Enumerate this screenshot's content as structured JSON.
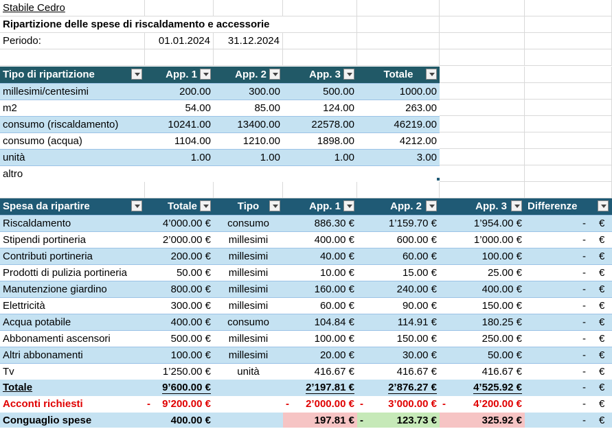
{
  "header": {
    "building": "Stabile Cedro",
    "title": "Ripartizione delle spese di riscaldamento e accessorie",
    "period_label": "Periodo:",
    "period_start": "01.01.2024",
    "period_end": "31.12.2024"
  },
  "table1": {
    "columns": [
      "Tipo di ripartizione",
      "App. 1",
      "App. 2",
      "App. 3",
      "Totale"
    ],
    "rows": [
      [
        "millesimi/centesimi",
        "200.00",
        "300.00",
        "500.00",
        "1000.00"
      ],
      [
        "m2",
        "54.00",
        "85.00",
        "124.00",
        "263.00"
      ],
      [
        "consumo (riscaldamento)",
        "10241.00",
        "13400.00",
        "22578.00",
        "46219.00"
      ],
      [
        "consumo (acqua)",
        "1104.00",
        "1210.00",
        "1898.00",
        "4212.00"
      ],
      [
        "unità",
        "1.00",
        "1.00",
        "1.00",
        "3.00"
      ],
      [
        "altro",
        "",
        "",
        "",
        ""
      ]
    ]
  },
  "table2": {
    "columns": [
      "Spesa da ripartire",
      "Totale",
      "Tipo",
      "App. 1",
      "App. 2",
      "App. 3",
      "Differenze"
    ],
    "rows": [
      [
        "Riscaldamento",
        "4’000.00 €",
        "consumo",
        "886.30 €",
        "1’159.70 €",
        "1’954.00 €",
        "-",
        "€"
      ],
      [
        "Stipendi portineria",
        "2’000.00 €",
        "millesimi",
        "400.00 €",
        "600.00 €",
        "1’000.00 €",
        "-",
        "€"
      ],
      [
        "Contributi portineria",
        "200.00 €",
        "millesimi",
        "40.00 €",
        "60.00 €",
        "100.00 €",
        "-",
        "€"
      ],
      [
        "Prodotti di pulizia portineria",
        "50.00 €",
        "millesimi",
        "10.00 €",
        "15.00 €",
        "25.00 €",
        "-",
        "€"
      ],
      [
        "Manutenzione giardino",
        "800.00 €",
        "millesimi",
        "160.00 €",
        "240.00 €",
        "400.00 €",
        "-",
        "€"
      ],
      [
        "Elettricità",
        "300.00 €",
        "millesimi",
        "60.00 €",
        "90.00 €",
        "150.00 €",
        "-",
        "€"
      ],
      [
        "Acqua potabile",
        "400.00 €",
        "consumo",
        "104.84 €",
        "114.91 €",
        "180.25 €",
        "-",
        "€"
      ],
      [
        "Abbonamenti ascensori",
        "500.00 €",
        "millesimi",
        "100.00 €",
        "150.00 €",
        "250.00 €",
        "-",
        "€"
      ],
      [
        "Altri abbonamenti",
        "100.00 €",
        "millesimi",
        "20.00 €",
        "30.00 €",
        "50.00 €",
        "-",
        "€"
      ],
      [
        "Tv",
        "1’250.00 €",
        "unità",
        "416.67 €",
        "416.67 €",
        "416.67 €",
        "-",
        "€"
      ]
    ],
    "totale": {
      "label": "Totale",
      "total": "9’600.00 €",
      "app1": "2’197.81 €",
      "app2": "2’876.27 €",
      "app3": "4’525.92 €",
      "diff_dash": "-",
      "diff_cur": "€"
    },
    "acconti": {
      "label": "Acconti richiesti",
      "total_sign": "-",
      "total": "9’200.00 €",
      "app1_sign": "-",
      "app1": "2’000.00 €",
      "app2_sign": "-",
      "app2": "3’000.00 €",
      "app3_sign": "-",
      "app3": "4’200.00 €",
      "diff_dash": "-",
      "diff_cur": "€"
    },
    "conguaglio": {
      "label": "Conguaglio spese",
      "total": "400.00 €",
      "app1": "197.81 €",
      "app2_sign": "-",
      "app2": "123.73 €",
      "app3": "325.92 €",
      "diff_dash": "-",
      "diff_cur": "€"
    }
  },
  "colors": {
    "header_bg": "#215967",
    "band": "#c5e2f2",
    "negative": "#e00000",
    "pink": "#f6c4c4",
    "green": "#c6e9b8"
  }
}
